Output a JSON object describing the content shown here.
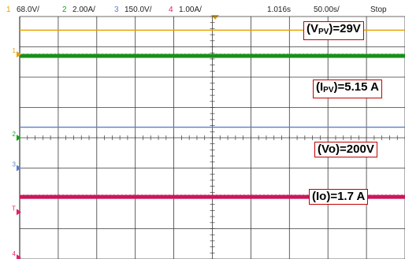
{
  "header": {
    "channels": [
      {
        "num": "1",
        "scale": "68.0V/",
        "color": "#e8a000"
      },
      {
        "num": "2",
        "scale": "2.00A/",
        "color": "#18a018"
      },
      {
        "num": "3",
        "scale": "150.0V/",
        "color": "#5a7fc8"
      },
      {
        "num": "4",
        "scale": "1.00A/",
        "color": "#e0206a"
      }
    ],
    "time_offset": "1.016s",
    "timebase": "50.00s/",
    "status": "Stop"
  },
  "annotations": {
    "vpv": {
      "prefix": "(V",
      "sub": "PV",
      "suffix": ")=29V"
    },
    "ipv": {
      "prefix": "(I",
      "sub": "PV",
      "suffix": ")=5.15 A"
    },
    "vo": {
      "text": "(Vo)=200V"
    },
    "io": {
      "text": "(Io)=1.7 A"
    }
  },
  "chart_data": {
    "type": "line",
    "title": "",
    "xlabel": "",
    "ylabel": "",
    "grid": true,
    "divisions": {
      "x": 10,
      "y": 8
    },
    "series": [
      {
        "channel": "1",
        "color": "#e8a000",
        "level_div": 3.55,
        "thickness": "thin"
      },
      {
        "channel": "2",
        "color": "#1a8f1a",
        "level_div": 2.7,
        "thickness": "thick"
      },
      {
        "channel": "3",
        "color": "#5a7fc8",
        "level_div": 0.35,
        "thickness": "thin"
      },
      {
        "channel": "4",
        "color": "#c8185a",
        "level_div": -1.95,
        "thickness": "thick"
      }
    ],
    "markers": [
      {
        "channel": "1",
        "color": "#e8a000",
        "level_div": 2.75
      },
      {
        "channel": "2",
        "color": "#18a018",
        "level_div": 0.0
      },
      {
        "channel": "3",
        "color": "#5a7fc8",
        "level_div": -1.0
      },
      {
        "channel": "T",
        "color": "#e0206a",
        "level_div": -2.45
      },
      {
        "channel": "4",
        "color": "#e0206a",
        "level_div": -3.95
      }
    ]
  }
}
